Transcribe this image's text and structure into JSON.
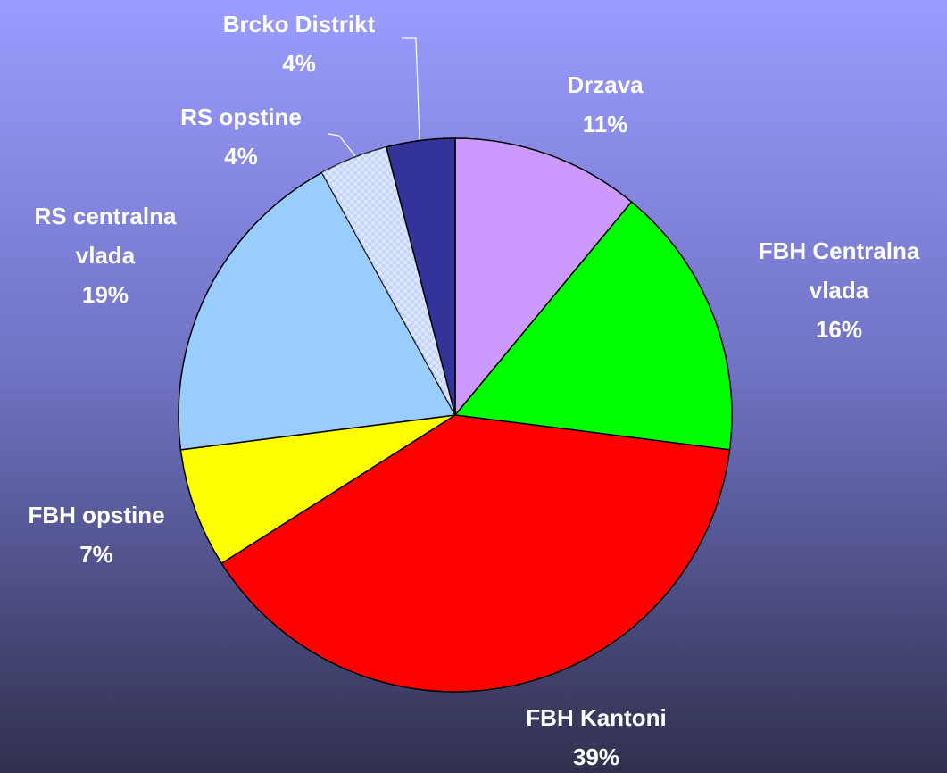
{
  "chart_data": {
    "type": "pie",
    "categories": [
      "Drzava",
      "FBH Centralna vlada",
      "FBH Kantoni",
      "FBH opstine",
      "RS centralna vlada",
      "RS opstine",
      "Brcko Distrikt"
    ],
    "values": [
      11,
      16,
      39,
      7,
      19,
      4,
      4
    ],
    "value_labels": [
      "11%",
      "16%",
      "39%",
      "7%",
      "19%",
      "4%",
      "4%"
    ],
    "colors": [
      "#cc99ff",
      "#00ff00",
      "#ff0000",
      "#ffff00",
      "#99ccff",
      "#a8c0f8",
      "#333399"
    ]
  }
}
